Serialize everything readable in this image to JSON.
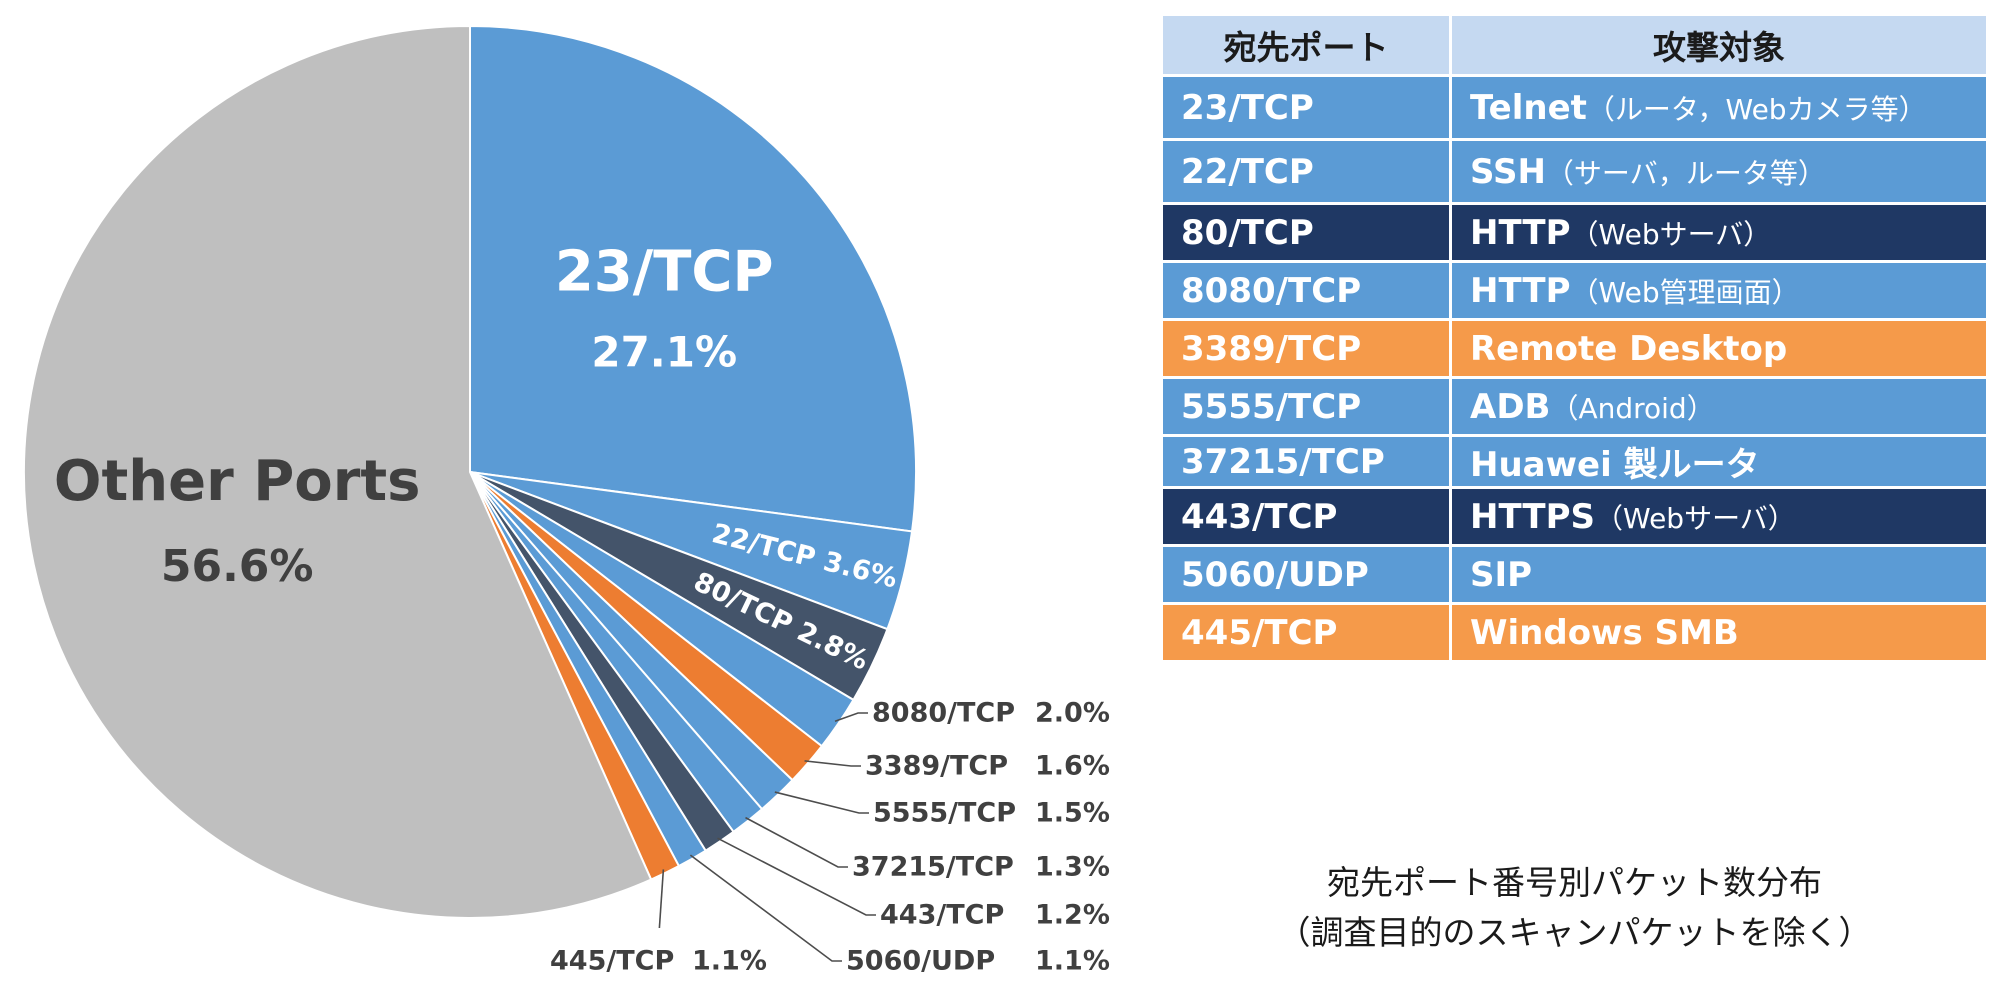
{
  "chart_data": {
    "type": "pie",
    "start_angle_deg": 0,
    "direction": "clockwise",
    "slices": [
      {
        "label": "23/TCP",
        "value": 27.1,
        "value_text": "27.1%",
        "color": "#5b9bd5",
        "label_style": "large-inside"
      },
      {
        "label": "22/TCP",
        "value": 3.6,
        "value_text": "3.6%",
        "color": "#5b9bd5",
        "label_style": "inside-rotated"
      },
      {
        "label": "80/TCP",
        "value": 2.8,
        "value_text": "2.8%",
        "color": "#44546a",
        "label_style": "inside-rotated"
      },
      {
        "label": "8080/TCP",
        "value": 2.0,
        "value_text": "2.0%",
        "color": "#5b9bd5",
        "label_style": "outside"
      },
      {
        "label": "3389/TCP",
        "value": 1.6,
        "value_text": "1.6%",
        "color": "#ed7d31",
        "label_style": "outside"
      },
      {
        "label": "5555/TCP",
        "value": 1.5,
        "value_text": "1.5%",
        "color": "#5b9bd5",
        "label_style": "outside"
      },
      {
        "label": "37215/TCP",
        "value": 1.3,
        "value_text": "1.3%",
        "color": "#5b9bd5",
        "label_style": "outside"
      },
      {
        "label": "443/TCP",
        "value": 1.2,
        "value_text": "1.2%",
        "color": "#44546a",
        "label_style": "outside"
      },
      {
        "label": "5060/UDP",
        "value": 1.1,
        "value_text": "1.1%",
        "color": "#5b9bd5",
        "label_style": "outside"
      },
      {
        "label": "445/TCP",
        "value": 1.1,
        "value_text": "1.1%",
        "color": "#ed7d31",
        "label_style": "outside-bottom"
      },
      {
        "label": "Other Ports",
        "value": 56.6,
        "value_text": "56.6%",
        "color": "#bfbfbf",
        "label_style": "large-inside-dark"
      }
    ]
  },
  "table": {
    "headers": {
      "port": "宛先ポート",
      "target": "攻撃対象"
    },
    "header_color": "#c5d9f1",
    "rows": [
      {
        "port": "23/TCP",
        "target": "Telnet",
        "note": "（ルータ，Webカメラ等）",
        "color": "#5b9bd5"
      },
      {
        "port": "22/TCP",
        "target": "SSH",
        "note": "（サーバ，ルータ等）",
        "color": "#5b9bd5"
      },
      {
        "port": "80/TCP",
        "target": "HTTP",
        "note": "（Webサーバ）",
        "color": "#1f3864"
      },
      {
        "port": "8080/TCP",
        "target": "HTTP",
        "note": "（Web管理画面）",
        "color": "#5b9bd5"
      },
      {
        "port": "3389/TCP",
        "target": "Remote Desktop",
        "note": "",
        "color": "#f59a4a"
      },
      {
        "port": "5555/TCP",
        "target": "ADB",
        "note": "（Android）",
        "color": "#5b9bd5"
      },
      {
        "port": "37215/TCP",
        "target": "Huawei 製ルータ",
        "note": "",
        "color": "#5b9bd5"
      },
      {
        "port": "443/TCP",
        "target": "HTTPS",
        "note": "（Webサーバ）",
        "color": "#1f3864"
      },
      {
        "port": "5060/UDP",
        "target": "SIP",
        "note": "",
        "color": "#5b9bd5"
      },
      {
        "port": "445/TCP",
        "target": "Windows SMB",
        "note": "",
        "color": "#f59a4a"
      }
    ]
  },
  "caption": {
    "line1": "宛先ポート番号別パケット数分布",
    "line2": "（調査目的のスキャンパケットを除く）"
  }
}
